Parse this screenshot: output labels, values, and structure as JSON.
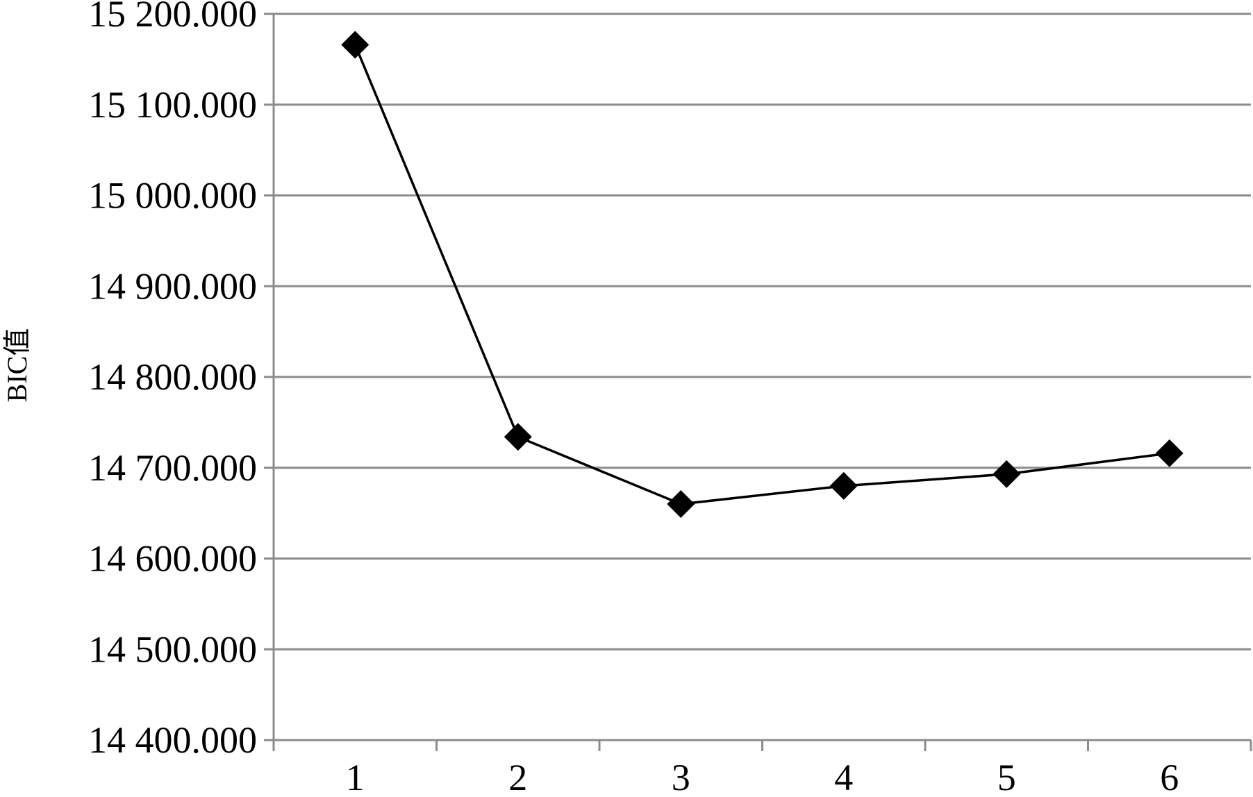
{
  "chart_data": {
    "type": "line",
    "title": "",
    "xlabel": "",
    "ylabel": "BIC值",
    "categories": [
      "1",
      "2",
      "3",
      "4",
      "5",
      "6"
    ],
    "series": [
      {
        "values": [
          15166,
          14734,
          14660,
          14680,
          14693,
          14716
        ]
      }
    ],
    "ylim": [
      14400,
      15200
    ],
    "yticks": [
      14400,
      14500,
      14600,
      14700,
      14800,
      14900,
      15000,
      15100,
      15200
    ],
    "ytick_labels": [
      "14 400.000",
      "14 500.000",
      "14 600.000",
      "14 700.000",
      "14 800.000",
      "14 900.000",
      "15 000.000",
      "15 100.000",
      "15 200.000"
    ],
    "grid": true,
    "marker": "diamond",
    "line_color": "#000000",
    "grid_color": "#8c8c8c",
    "axis_color": "#8c8c8c"
  }
}
